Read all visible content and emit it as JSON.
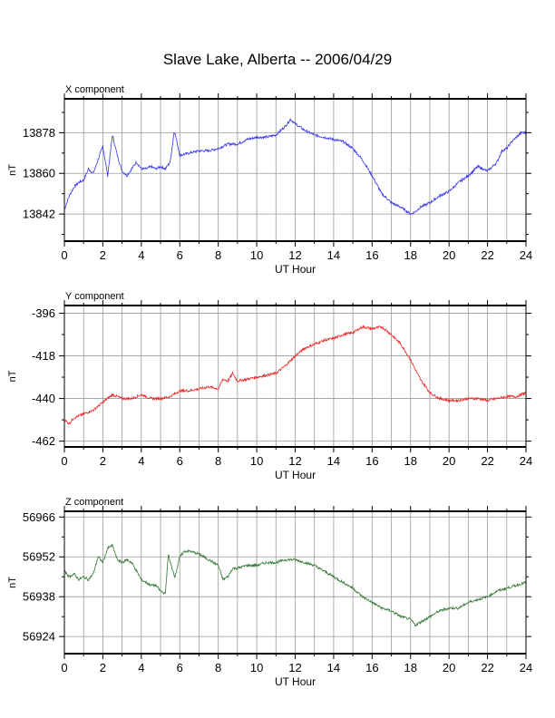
{
  "title": "Slave Lake, Alberta -- 2006/04/29",
  "chart_data": [
    {
      "type": "line",
      "title": "X component",
      "xlabel": "UT Hour",
      "ylabel": "nT",
      "xlim": [
        0,
        24
      ],
      "ylim": [
        13830,
        13893
      ],
      "x_ticks": [
        0,
        2,
        4,
        6,
        8,
        10,
        12,
        14,
        16,
        18,
        20,
        22,
        24
      ],
      "y_ticks": [
        13842,
        13860,
        13878
      ],
      "grid": true,
      "color": "#3333ee",
      "series": [
        {
          "x": [
            0,
            0.25,
            0.5,
            0.75,
            1,
            1.25,
            1.5,
            1.75,
            2,
            2.25,
            2.5,
            2.75,
            3,
            3.25,
            3.5,
            3.75,
            4,
            4.25,
            4.5,
            4.75,
            5,
            5.25,
            5.5,
            5.7,
            5.75,
            6,
            6.5,
            7,
            7.5,
            8,
            8.5,
            9,
            9.5,
            10,
            10.5,
            11,
            11.5,
            11.75,
            12,
            12.5,
            13,
            13.5,
            14,
            14.5,
            15,
            15.5,
            16,
            16.5,
            17,
            17.5,
            18,
            18.25,
            18.5,
            19,
            19.5,
            20,
            20.5,
            21,
            21.5,
            22,
            22.5,
            22.75,
            23,
            23.25,
            23.5,
            23.75,
            24
          ],
          "y": [
            13844,
            13850,
            13854,
            13856,
            13857,
            13862,
            13860,
            13866,
            13872,
            13859,
            13877,
            13868,
            13861,
            13859,
            13862,
            13865,
            13862,
            13862,
            13863,
            13862,
            13863,
            13862,
            13865,
            13878,
            13878,
            13868,
            13869,
            13870,
            13870,
            13871,
            13873,
            13873,
            13875,
            13876,
            13876,
            13877,
            13881,
            13884,
            13882,
            13879,
            13877,
            13876,
            13875,
            13874,
            13871,
            13866,
            13859,
            13851,
            13847,
            13845,
            13842,
            13843,
            13845,
            13847,
            13850,
            13852,
            13856,
            13859,
            13863,
            13861,
            13865,
            13870,
            13871,
            13874,
            13876,
            13878,
            13878
          ]
        }
      ]
    },
    {
      "type": "line",
      "title": "Y component",
      "xlabel": "UT Hour",
      "ylabel": "nT",
      "xlim": [
        0,
        24
      ],
      "ylim": [
        -465,
        -392
      ],
      "x_ticks": [
        0,
        2,
        4,
        6,
        8,
        10,
        12,
        14,
        16,
        18,
        20,
        22,
        24
      ],
      "y_ticks": [
        -462,
        -440,
        -418,
        -396
      ],
      "grid": true,
      "color": "#ee2222",
      "series": [
        {
          "x": [
            0,
            0.25,
            0.5,
            0.75,
            1,
            1.5,
            2,
            2.5,
            3,
            3.5,
            4,
            4.5,
            5,
            5.5,
            6,
            6.5,
            7,
            7.5,
            8,
            8.25,
            8.5,
            8.75,
            9,
            9.5,
            10,
            10.5,
            11,
            11.5,
            12,
            12.5,
            13,
            13.5,
            14,
            14.5,
            15,
            15.5,
            16,
            16.5,
            17,
            17.5,
            18,
            18.5,
            19,
            19.5,
            20,
            20.5,
            21,
            21.5,
            22,
            22.5,
            23,
            23.5,
            24
          ],
          "y": [
            -451,
            -453,
            -450,
            -449,
            -448,
            -446,
            -442,
            -438,
            -440,
            -440,
            -438,
            -440,
            -440,
            -439,
            -436,
            -436,
            -435,
            -434,
            -435,
            -430,
            -431,
            -427,
            -431,
            -430,
            -429,
            -428,
            -427,
            -423,
            -418,
            -414,
            -412,
            -410,
            -409,
            -407,
            -406,
            -403,
            -404,
            -403,
            -407,
            -412,
            -420,
            -430,
            -437,
            -440,
            -441,
            -441,
            -440,
            -440,
            -441,
            -440,
            -439,
            -439,
            -437
          ]
        }
      ]
    },
    {
      "type": "line",
      "title": "Z component",
      "xlabel": "UT Hour",
      "ylabel": "nT",
      "xlim": [
        0,
        24
      ],
      "ylim": [
        56918,
        56968
      ],
      "x_ticks": [
        0,
        2,
        4,
        6,
        8,
        10,
        12,
        14,
        16,
        18,
        20,
        22,
        24
      ],
      "y_ticks": [
        56924,
        56938,
        56952,
        56966
      ],
      "grid": true,
      "color": "#337733",
      "series": [
        {
          "x": [
            0,
            0.25,
            0.5,
            0.75,
            1,
            1.25,
            1.5,
            1.75,
            2,
            2.25,
            2.5,
            2.75,
            3,
            3.25,
            3.5,
            3.75,
            4,
            4.25,
            4.5,
            4.75,
            5,
            5.25,
            5.4,
            5.5,
            5.75,
            6,
            6.25,
            6.5,
            7,
            7.5,
            8,
            8.25,
            8.5,
            8.75,
            9,
            9.5,
            10,
            10.5,
            11,
            11.5,
            12,
            12.5,
            13,
            13.5,
            14,
            14.5,
            15,
            15.5,
            16,
            16.5,
            17,
            17.5,
            18,
            18.25,
            18.5,
            19,
            19.5,
            20,
            20.5,
            21,
            21.5,
            22,
            22.5,
            23,
            23.5,
            24
          ],
          "y": [
            56947,
            56945,
            56946,
            56944,
            56945,
            56944,
            56946,
            56952,
            56950,
            56955,
            56956,
            56951,
            56950,
            56951,
            56950,
            56947,
            56944,
            56943,
            56942,
            56942,
            56940,
            56939,
            56953,
            56950,
            56945,
            56952,
            56954,
            56954,
            56953,
            56951,
            56949,
            56944,
            56945,
            56948,
            56948,
            56949,
            56949,
            56950,
            56950,
            56951,
            56951,
            56950,
            56949,
            56947,
            56945,
            56943,
            56941,
            56938,
            56936,
            56934,
            56933,
            56931,
            56930,
            56928,
            56929,
            56931,
            56933,
            56934,
            56934,
            56936,
            56937,
            56938,
            56940,
            56941,
            56942,
            56943
          ]
        }
      ]
    }
  ]
}
